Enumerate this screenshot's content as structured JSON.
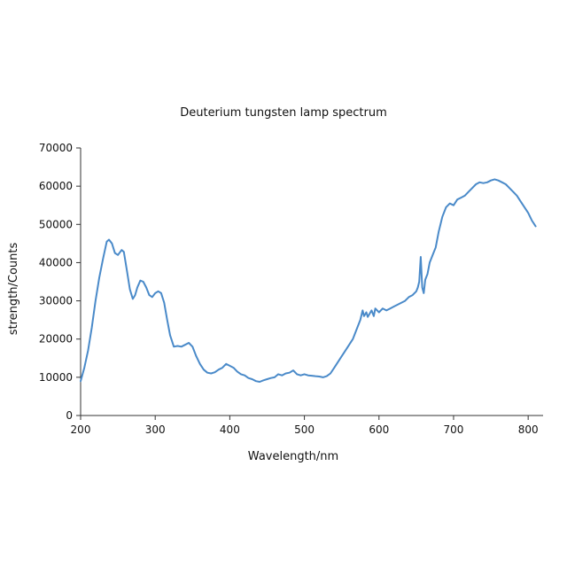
{
  "chart_data": {
    "type": "line",
    "title": "Deuterium tungsten lamp spectrum",
    "xlabel": "Wavelength/nm",
    "ylabel": "strength/Counts",
    "xlim": [
      200,
      820
    ],
    "ylim": [
      0,
      70000
    ],
    "xticks": [
      200,
      300,
      400,
      500,
      600,
      700,
      800
    ],
    "yticks": [
      0,
      10000,
      20000,
      30000,
      40000,
      50000,
      60000,
      70000
    ],
    "grid": false,
    "legend": "none",
    "line_color": "#4a8ac9",
    "series": [
      {
        "x": [
          200,
          205,
          210,
          215,
          220,
          225,
          230,
          235,
          238,
          242,
          246,
          250,
          255,
          258,
          262,
          266,
          270,
          273,
          276,
          280,
          284,
          288,
          292,
          296,
          300,
          304,
          308,
          312,
          316,
          320,
          325,
          330,
          335,
          340,
          345,
          350,
          355,
          360,
          365,
          370,
          375,
          380,
          385,
          390,
          395,
          400,
          405,
          410,
          415,
          420,
          425,
          430,
          435,
          440,
          445,
          450,
          455,
          460,
          465,
          470,
          475,
          480,
          485,
          490,
          495,
          500,
          505,
          510,
          515,
          520,
          525,
          530,
          535,
          540,
          545,
          550,
          555,
          560,
          565,
          570,
          575,
          578,
          580,
          583,
          585,
          590,
          593,
          595,
          600,
          605,
          610,
          615,
          620,
          625,
          630,
          635,
          640,
          645,
          650,
          652,
          654,
          656,
          658,
          660,
          662,
          665,
          668,
          672,
          676,
          680,
          685,
          690,
          695,
          700,
          705,
          710,
          715,
          720,
          725,
          730,
          735,
          740,
          745,
          750,
          755,
          760,
          765,
          770,
          775,
          780,
          785,
          790,
          795,
          800,
          805,
          810
        ],
        "y": [
          9000,
          12500,
          17000,
          23000,
          30000,
          36000,
          41000,
          45500,
          46000,
          45000,
          42500,
          42000,
          43300,
          42800,
          38000,
          33000,
          30500,
          31500,
          33500,
          35300,
          35000,
          33500,
          31500,
          31000,
          32000,
          32500,
          32000,
          29500,
          25000,
          21000,
          18000,
          18200,
          18000,
          18500,
          19000,
          18000,
          15500,
          13500,
          12000,
          11200,
          11000,
          11300,
          12000,
          12500,
          13500,
          13000,
          12500,
          11500,
          10800,
          10500,
          9800,
          9500,
          9000,
          8800,
          9200,
          9500,
          9800,
          10000,
          10800,
          10500,
          11000,
          11200,
          11800,
          10800,
          10500,
          10800,
          10500,
          10400,
          10300,
          10200,
          10000,
          10300,
          11000,
          12500,
          14000,
          15500,
          17000,
          18500,
          20000,
          22500,
          25000,
          27500,
          26000,
          27000,
          25800,
          27500,
          26000,
          28000,
          27000,
          28000,
          27500,
          28000,
          28500,
          29000,
          29500,
          30000,
          31000,
          31500,
          32500,
          33500,
          35000,
          41500,
          33500,
          32000,
          35500,
          37000,
          40000,
          42000,
          44000,
          48000,
          52000,
          54500,
          55500,
          55000,
          56500,
          57000,
          57500,
          58500,
          59500,
          60500,
          61000,
          60800,
          61000,
          61500,
          61800,
          61500,
          61000,
          60500,
          59500,
          58500,
          57500,
          56000,
          54500,
          53000,
          51000,
          49500
        ]
      }
    ]
  }
}
